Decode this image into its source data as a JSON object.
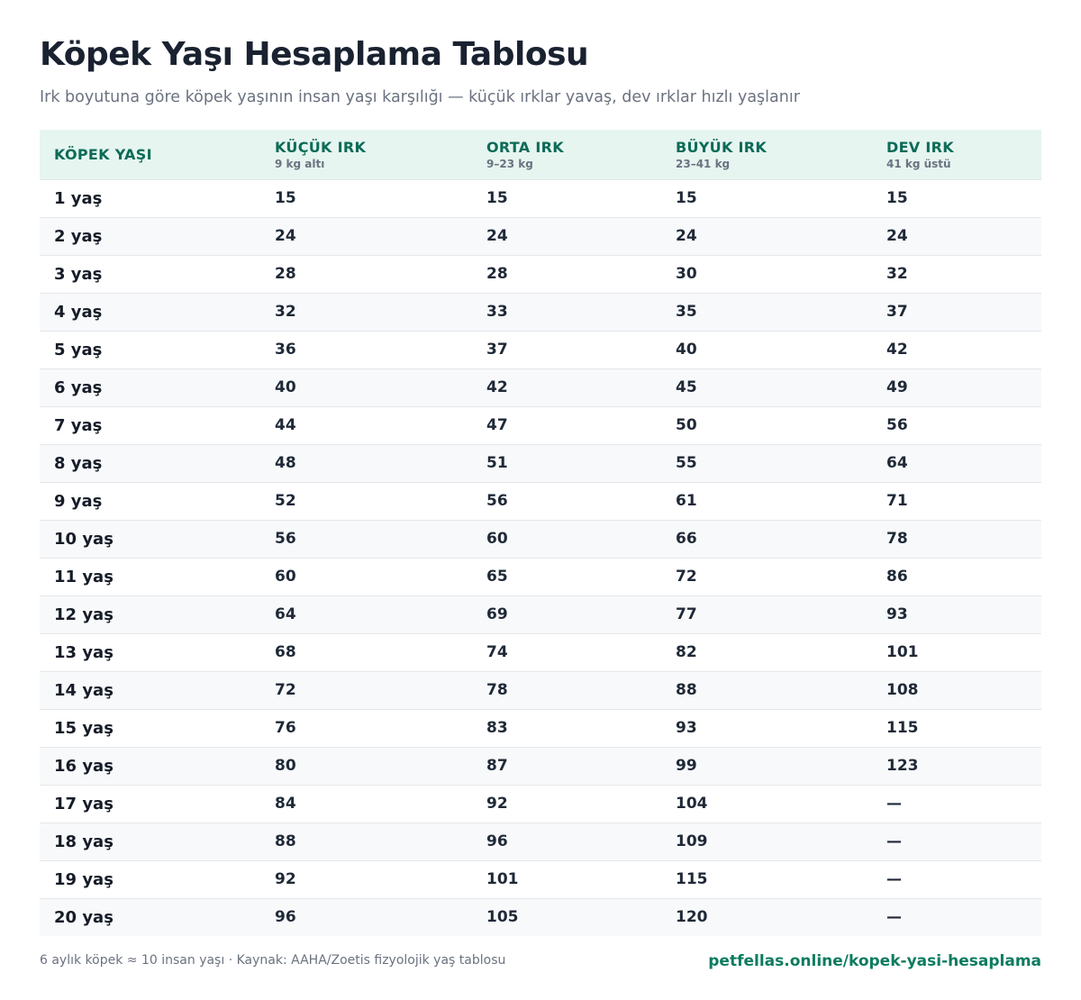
{
  "title": "Köpek Yaşı Hesaplama Tablosu",
  "subtitle": "Irk boyutuna göre köpek yaşının insan yaşı karşılığı — küçük ırklar yavaş, dev ırklar hızlı yaşlanır",
  "table": {
    "columns": [
      {
        "label": "KÖPEK YAŞI",
        "sub": ""
      },
      {
        "label": "KÜÇÜK IRK",
        "sub": "9 kg altı"
      },
      {
        "label": "ORTA IRK",
        "sub": "9–23 kg"
      },
      {
        "label": "BÜYÜK IRK",
        "sub": "23–41 kg"
      },
      {
        "label": "DEV IRK",
        "sub": "41 kg üstü"
      }
    ],
    "rows": [
      [
        "1 yaş",
        "15",
        "15",
        "15",
        "15"
      ],
      [
        "2 yaş",
        "24",
        "24",
        "24",
        "24"
      ],
      [
        "3 yaş",
        "28",
        "28",
        "30",
        "32"
      ],
      [
        "4 yaş",
        "32",
        "33",
        "35",
        "37"
      ],
      [
        "5 yaş",
        "36",
        "37",
        "40",
        "42"
      ],
      [
        "6 yaş",
        "40",
        "42",
        "45",
        "49"
      ],
      [
        "7 yaş",
        "44",
        "47",
        "50",
        "56"
      ],
      [
        "8 yaş",
        "48",
        "51",
        "55",
        "64"
      ],
      [
        "9 yaş",
        "52",
        "56",
        "61",
        "71"
      ],
      [
        "10 yaş",
        "56",
        "60",
        "66",
        "78"
      ],
      [
        "11 yaş",
        "60",
        "65",
        "72",
        "86"
      ],
      [
        "12 yaş",
        "64",
        "69",
        "77",
        "93"
      ],
      [
        "13 yaş",
        "68",
        "74",
        "82",
        "101"
      ],
      [
        "14 yaş",
        "72",
        "78",
        "88",
        "108"
      ],
      [
        "15 yaş",
        "76",
        "83",
        "93",
        "115"
      ],
      [
        "16 yaş",
        "80",
        "87",
        "99",
        "123"
      ],
      [
        "17 yaş",
        "84",
        "92",
        "104",
        "—"
      ],
      [
        "18 yaş",
        "88",
        "96",
        "109",
        "—"
      ],
      [
        "19 yaş",
        "92",
        "101",
        "115",
        "—"
      ],
      [
        "20 yaş",
        "96",
        "105",
        "120",
        "—"
      ]
    ]
  },
  "footer": {
    "note": "6 aylık köpek ≈ 10 insan yaşı · Kaynak: AAHA/Zoetis fizyolojik yaş tablosu",
    "link": "petfellas.online/kopek-yasi-hesaplama"
  },
  "colors": {
    "header_bg": "#e6f5f0",
    "header_text": "#0c6b57",
    "link": "#0c7c5f",
    "title": "#1a2231"
  }
}
